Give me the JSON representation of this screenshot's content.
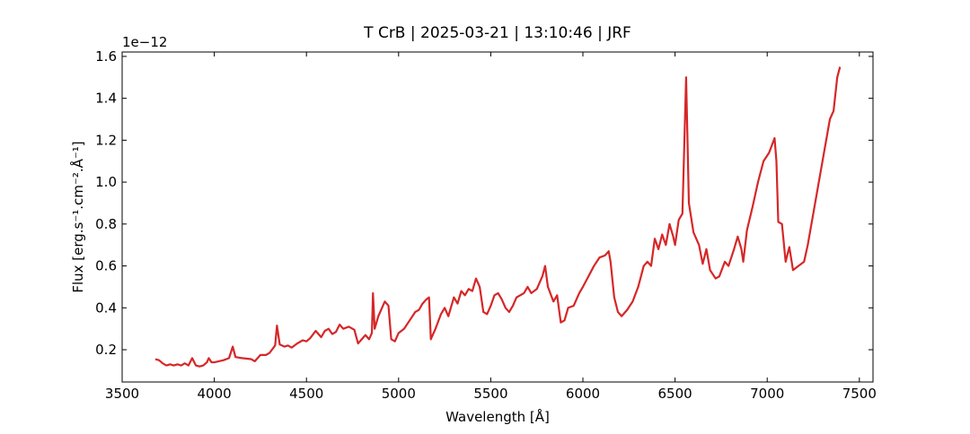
{
  "chart_data": {
    "type": "line",
    "title": "T CrB | 2025-03-21 | 13:10:46 | JRF",
    "x_label": "Wavelength [Å]",
    "y_label": "Flux [erg.s⁻¹.cm⁻².Å⁻¹]",
    "y_offset_label": "1e−12",
    "xlim": [
      3500,
      7574
    ],
    "ylim": [
      0.046,
      1.621
    ],
    "xticks": [
      3500,
      4000,
      4500,
      5000,
      5500,
      6000,
      6500,
      7000,
      7500
    ],
    "yticks": [
      0.2,
      0.4,
      0.6,
      0.8,
      {
        "value": 1,
        "label": "1.0"
      },
      1.2,
      1.4,
      1.6
    ],
    "x": [
      3680,
      3700,
      3720,
      3740,
      3760,
      3780,
      3800,
      3820,
      3840,
      3860,
      3880,
      3900,
      3920,
      3940,
      3960,
      3970,
      3985,
      4000,
      4050,
      4080,
      4100,
      4115,
      4150,
      4200,
      4220,
      4250,
      4280,
      4300,
      4330,
      4340,
      4355,
      4380,
      4400,
      4420,
      4450,
      4480,
      4500,
      4520,
      4550,
      4580,
      4600,
      4620,
      4640,
      4660,
      4680,
      4700,
      4730,
      4760,
      4780,
      4800,
      4820,
      4840,
      4855,
      4861,
      4870,
      4890,
      4910,
      4925,
      4945,
      4960,
      4980,
      5000,
      5030,
      5060,
      5090,
      5110,
      5130,
      5150,
      5165,
      5175,
      5200,
      5230,
      5250,
      5270,
      5300,
      5320,
      5340,
      5360,
      5380,
      5400,
      5420,
      5440,
      5460,
      5480,
      5500,
      5520,
      5540,
      5560,
      5580,
      5600,
      5620,
      5640,
      5680,
      5700,
      5720,
      5750,
      5780,
      5795,
      5810,
      5840,
      5860,
      5880,
      5900,
      5920,
      5950,
      5980,
      6000,
      6030,
      6060,
      6090,
      6120,
      6140,
      6150,
      6170,
      6190,
      6210,
      6240,
      6270,
      6300,
      6330,
      6350,
      6370,
      6390,
      6410,
      6430,
      6450,
      6470,
      6490,
      6500,
      6520,
      6540,
      6560,
      6575,
      6600,
      6630,
      6650,
      6670,
      6690,
      6720,
      6740,
      6770,
      6790,
      6820,
      6840,
      6860,
      6870,
      6890,
      6920,
      6950,
      6980,
      7010,
      7040,
      7050,
      7060,
      7080,
      7100,
      7120,
      7140,
      7170,
      7200,
      7220,
      7250,
      7280,
      7310,
      7340,
      7360,
      7380,
      7395
    ],
    "series": [
      {
        "color": "#d62728",
        "values": [
          0.155,
          0.15,
          0.135,
          0.125,
          0.13,
          0.125,
          0.13,
          0.125,
          0.135,
          0.125,
          0.16,
          0.125,
          0.12,
          0.125,
          0.14,
          0.16,
          0.14,
          0.14,
          0.15,
          0.16,
          0.215,
          0.165,
          0.16,
          0.155,
          0.145,
          0.175,
          0.175,
          0.185,
          0.22,
          0.315,
          0.225,
          0.215,
          0.22,
          0.21,
          0.23,
          0.245,
          0.24,
          0.255,
          0.29,
          0.26,
          0.29,
          0.3,
          0.275,
          0.285,
          0.32,
          0.3,
          0.31,
          0.295,
          0.23,
          0.25,
          0.27,
          0.25,
          0.28,
          0.47,
          0.3,
          0.36,
          0.4,
          0.43,
          0.41,
          0.25,
          0.24,
          0.28,
          0.3,
          0.34,
          0.38,
          0.39,
          0.42,
          0.44,
          0.45,
          0.25,
          0.3,
          0.37,
          0.4,
          0.36,
          0.45,
          0.42,
          0.48,
          0.46,
          0.49,
          0.48,
          0.54,
          0.5,
          0.38,
          0.37,
          0.41,
          0.46,
          0.47,
          0.44,
          0.4,
          0.38,
          0.41,
          0.45,
          0.47,
          0.5,
          0.47,
          0.49,
          0.55,
          0.6,
          0.5,
          0.43,
          0.46,
          0.33,
          0.34,
          0.4,
          0.41,
          0.47,
          0.5,
          0.55,
          0.6,
          0.64,
          0.65,
          0.67,
          0.62,
          0.45,
          0.38,
          0.36,
          0.39,
          0.43,
          0.5,
          0.6,
          0.62,
          0.6,
          0.73,
          0.68,
          0.75,
          0.7,
          0.8,
          0.74,
          0.7,
          0.82,
          0.85,
          1.5,
          0.9,
          0.76,
          0.7,
          0.61,
          0.68,
          0.58,
          0.54,
          0.55,
          0.62,
          0.6,
          0.68,
          0.74,
          0.68,
          0.62,
          0.77,
          0.88,
          1.0,
          1.1,
          1.14,
          1.21,
          1.1,
          0.81,
          0.8,
          0.62,
          0.69,
          0.58,
          0.6,
          0.62,
          0.7,
          0.85,
          1.0,
          1.15,
          1.3,
          1.34,
          1.5,
          1.55
        ]
      }
    ]
  }
}
